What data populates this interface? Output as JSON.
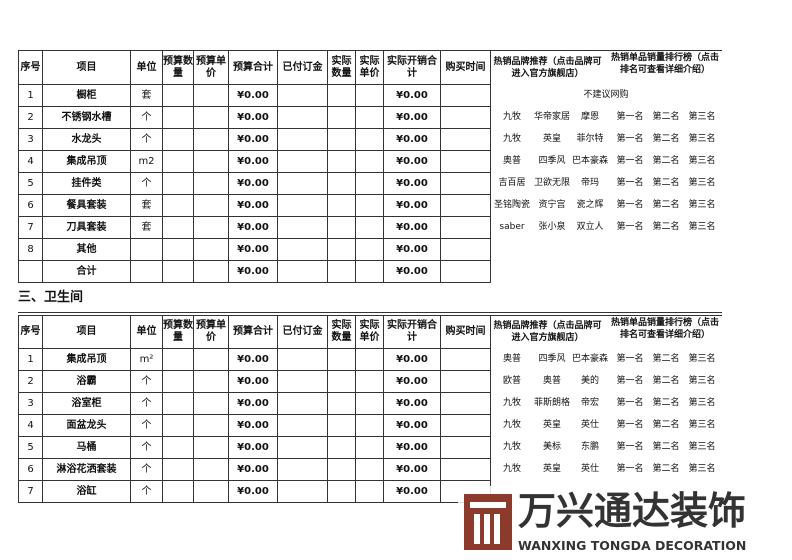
{
  "table1": {
    "headers": [
      "序号",
      "项目",
      "单位",
      "预算数量",
      "预算单价",
      "预算合计",
      "已付订金",
      "实际数量",
      "实际单价",
      "实际开销合计",
      "购买时间"
    ],
    "right_headers": [
      "热销品牌推荐（点击品牌可进入官方旗舰店）",
      "热销单品销量排行榜（点击排名可查看详细介绍）"
    ],
    "rows": [
      {
        "no": "1",
        "item": "橱柜",
        "unit": "套",
        "budget_total": "¥0.00",
        "actual_total": "¥0.00"
      },
      {
        "no": "2",
        "item": "不锈钢水槽",
        "unit": "个",
        "budget_total": "¥0.00",
        "actual_total": "¥0.00"
      },
      {
        "no": "3",
        "item": "水龙头",
        "unit": "个",
        "budget_total": "¥0.00",
        "actual_total": "¥0.00"
      },
      {
        "no": "4",
        "item": "集成吊顶",
        "unit": "m2",
        "budget_total": "¥0.00",
        "actual_total": "¥0.00"
      },
      {
        "no": "5",
        "item": "挂件类",
        "unit": "个",
        "budget_total": "¥0.00",
        "actual_total": "¥0.00"
      },
      {
        "no": "6",
        "item": "餐具套装",
        "unit": "套",
        "budget_total": "¥0.00",
        "actual_total": "¥0.00"
      },
      {
        "no": "7",
        "item": "刀具套装",
        "unit": "套",
        "budget_total": "¥0.00",
        "actual_total": "¥0.00"
      },
      {
        "no": "8",
        "item": "其他",
        "budget_total": "¥0.00",
        "actual_total": "¥0.00"
      },
      {
        "item": "合计",
        "budget_total": "¥0.00",
        "actual_total": "¥0.00"
      }
    ],
    "recommendations": [
      {
        "note": "不建议网购"
      },
      {
        "brands": [
          "九牧",
          "华帝家居",
          "摩恩"
        ],
        "ranks": [
          "第一名",
          "第二名",
          "第三名"
        ]
      },
      {
        "brands": [
          "九牧",
          "英皇",
          "菲尔特"
        ],
        "ranks": [
          "第一名",
          "第二名",
          "第三名"
        ]
      },
      {
        "brands": [
          "奥普",
          "四季风",
          "巴本豪森"
        ],
        "ranks": [
          "第一名",
          "第二名",
          "第三名"
        ]
      },
      {
        "brands": [
          "吉百居",
          "卫欲无限",
          "帝玛"
        ],
        "ranks": [
          "第一名",
          "第二名",
          "第三名"
        ]
      },
      {
        "brands": [
          "圣铭陶瓷",
          "资宁宫",
          "瓷之辉"
        ],
        "ranks": [
          "第一名",
          "第二名",
          "第三名"
        ]
      },
      {
        "brands": [
          "saber",
          "张小泉",
          "双立人"
        ],
        "ranks": [
          "第一名",
          "第二名",
          "第三名"
        ]
      }
    ]
  },
  "section_title": "三、卫生间",
  "table2": {
    "headers": [
      "序号",
      "项目",
      "单位",
      "预算数量",
      "预算单价",
      "预算合计",
      "已付订金",
      "实际数量",
      "实际单价",
      "实际开销合计",
      "购买时间"
    ],
    "right_headers": [
      "热销品牌推荐（点击品牌可进入官方旗舰店）",
      "热销单品销量排行榜（点击排名可查看详细介绍）"
    ],
    "rows": [
      {
        "no": "1",
        "item": "集成吊顶",
        "unit": "m²",
        "budget_total": "¥0.00",
        "actual_total": "¥0.00"
      },
      {
        "no": "2",
        "item": "浴霸",
        "unit": "个",
        "budget_total": "¥0.00",
        "actual_total": "¥0.00"
      },
      {
        "no": "3",
        "item": "浴室柜",
        "unit": "个",
        "budget_total": "¥0.00",
        "actual_total": "¥0.00"
      },
      {
        "no": "4",
        "item": "面盆龙头",
        "unit": "个",
        "budget_total": "¥0.00",
        "actual_total": "¥0.00"
      },
      {
        "no": "5",
        "item": "马桶",
        "unit": "个",
        "budget_total": "¥0.00",
        "actual_total": "¥0.00"
      },
      {
        "no": "6",
        "item": "淋浴花洒套装",
        "unit": "个",
        "budget_total": "¥0.00",
        "actual_total": "¥0.00"
      },
      {
        "no": "7",
        "item": "浴缸",
        "unit": "个",
        "budget_total": "¥0.00",
        "actual_total": "¥0.00"
      }
    ],
    "recommendations": [
      {
        "brands": [
          "奥普",
          "四季风",
          "巴本豪森"
        ],
        "ranks": [
          "第一名",
          "第二名",
          "第三名"
        ]
      },
      {
        "brands": [
          "欧普",
          "奥普",
          "美的"
        ],
        "ranks": [
          "第一名",
          "第二名",
          "第三名"
        ]
      },
      {
        "brands": [
          "九牧",
          "菲斯朗格",
          "帝宏"
        ],
        "ranks": [
          "第一名",
          "第二名",
          "第三名"
        ]
      },
      {
        "brands": [
          "九牧",
          "英皇",
          "英仕"
        ],
        "ranks": [
          "第一名",
          "第二名",
          "第三名"
        ]
      },
      {
        "brands": [
          "九牧",
          "美标",
          "东鹏"
        ],
        "ranks": [
          "第一名",
          "第二名",
          "第三名"
        ]
      },
      {
        "brands": [
          "九牧",
          "英皇",
          "英仕"
        ],
        "ranks": [
          "第一名",
          "第二名",
          "第三名"
        ]
      }
    ]
  },
  "logo": {
    "name": "万兴通达装饰",
    "english": "WANXING TONGDA DECORATION"
  }
}
